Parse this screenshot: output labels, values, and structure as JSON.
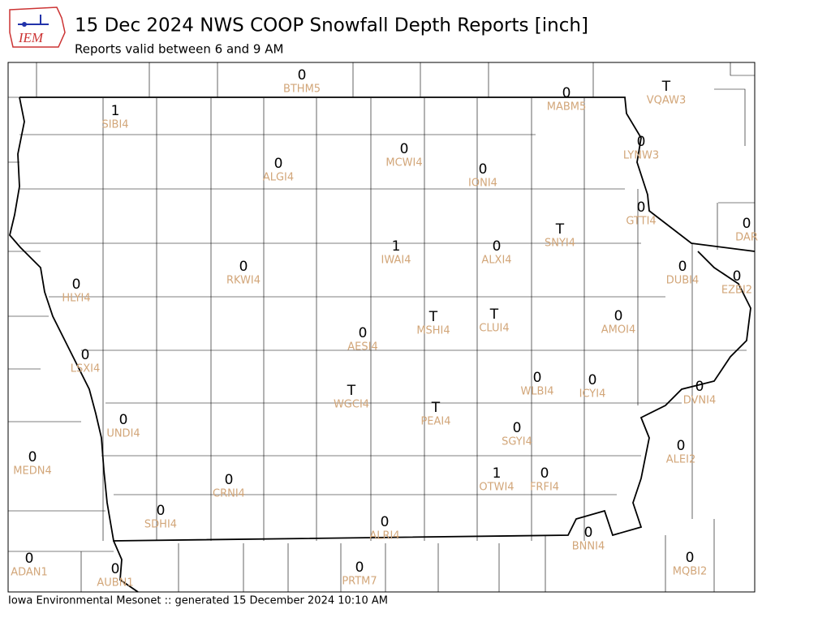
{
  "header": {
    "logo_text": "IEM",
    "title": "15 Dec 2024 NWS COOP Snowfall Depth Reports [inch]",
    "subtitle": "Reports valid between 6 and 9 AM"
  },
  "footer": "Iowa Environmental Mesonet :: generated 15 December 2024 10:10 AM",
  "stations": [
    {
      "value": 0,
      "id": "BTHM5"
    },
    {
      "value": 1,
      "id": "SIBI4"
    },
    {
      "value": 0,
      "id": "MABM5"
    },
    {
      "value": "T",
      "id": "VQAW3"
    },
    {
      "value": 0,
      "id": "ALGI4"
    },
    {
      "value": 0,
      "id": "MCWI4"
    },
    {
      "value": 0,
      "id": "IONI4"
    },
    {
      "value": 0,
      "id": "LYNW3"
    },
    {
      "value": 0,
      "id": "GTTI4"
    },
    {
      "value": 0,
      "id": "DAR"
    },
    {
      "value": "T",
      "id": "SNYI4"
    },
    {
      "value": 1,
      "id": "IWAI4"
    },
    {
      "value": 0,
      "id": "ALXI4"
    },
    {
      "value": 0,
      "id": "RKWI4"
    },
    {
      "value": 0,
      "id": "DUBI4"
    },
    {
      "value": 0,
      "id": "EZBI2"
    },
    {
      "value": 0,
      "id": "HLYI4"
    },
    {
      "value": "T",
      "id": "MSHI4"
    },
    {
      "value": "T",
      "id": "CLUI4"
    },
    {
      "value": 0,
      "id": "AMOI4"
    },
    {
      "value": 0,
      "id": "AESI4"
    },
    {
      "value": 0,
      "id": "LSXI4"
    },
    {
      "value": "T",
      "id": "WGCI4"
    },
    {
      "value": 0,
      "id": "WLBI4"
    },
    {
      "value": 0,
      "id": "ICYI4"
    },
    {
      "value": 0,
      "id": "DVNI4"
    },
    {
      "value": "T",
      "id": "PEAI4"
    },
    {
      "value": 0,
      "id": "UNDI4"
    },
    {
      "value": 0,
      "id": "SGYI4"
    },
    {
      "value": 0,
      "id": "ALEI2"
    },
    {
      "value": 0,
      "id": "MEDN4"
    },
    {
      "value": 1,
      "id": "OTWI4"
    },
    {
      "value": 0,
      "id": "FRFI4"
    },
    {
      "value": 0,
      "id": "CRNI4"
    },
    {
      "value": 0,
      "id": "SDHI4"
    },
    {
      "value": 0,
      "id": "ALRI4"
    },
    {
      "value": 0,
      "id": "BNNI4"
    },
    {
      "value": 0,
      "id": "ADAN1"
    },
    {
      "value": 0,
      "id": "AUBN1"
    },
    {
      "value": 0,
      "id": "MQBI2"
    },
    {
      "value": 0,
      "id": "PRTM7"
    }
  ]
}
